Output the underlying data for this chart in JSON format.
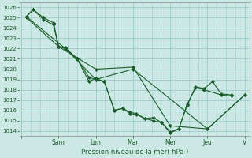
{
  "bg_color": "#cce8e4",
  "grid_color": "#99cccc",
  "line_color": "#1a5c2a",
  "xlabel": "Pression niveau de la mer( hPa )",
  "ylim": [
    1013.5,
    1026.5
  ],
  "yticks": [
    1014,
    1015,
    1016,
    1017,
    1018,
    1019,
    1020,
    1021,
    1022,
    1023,
    1024,
    1025,
    1026
  ],
  "xlim": [
    -0.1,
    13.5
  ],
  "day_labels": [
    "",
    "Sam",
    "Lun",
    "Mar",
    "Mer",
    "Jeu",
    "V"
  ],
  "day_positions": [
    0,
    2.2,
    4.4,
    6.6,
    8.8,
    11.0,
    13.2
  ],
  "series": [
    {
      "x": [
        0.3,
        0.7,
        1.3,
        1.9,
        2.2,
        2.6,
        3.3,
        4.0,
        4.4,
        4.9,
        5.5,
        6.0,
        6.4,
        6.8,
        7.3,
        7.8,
        8.3,
        8.8,
        9.3,
        9.8,
        10.3,
        10.8,
        11.3,
        11.8,
        12.4
      ],
      "y": [
        1025.1,
        1025.8,
        1025.0,
        1024.5,
        1022.2,
        1022.1,
        1021.0,
        1018.8,
        1019.1,
        1018.8,
        1016.0,
        1016.2,
        1015.8,
        1015.7,
        1015.2,
        1015.3,
        1014.8,
        1013.8,
        1014.2,
        1016.5,
        1018.3,
        1018.1,
        1018.8,
        1017.6,
        1017.5
      ]
    },
    {
      "x": [
        0.3,
        0.7,
        1.3,
        1.9,
        2.2,
        2.6,
        3.3,
        4.0,
        4.4,
        4.9,
        5.5,
        6.0,
        6.4,
        6.8,
        7.3,
        7.8,
        8.3,
        8.8,
        9.3,
        9.8,
        10.3,
        10.8,
        11.8,
        12.4
      ],
      "y": [
        1025.1,
        1025.8,
        1024.8,
        1024.3,
        1022.2,
        1022.0,
        1021.0,
        1019.2,
        1019.0,
        1018.8,
        1016.0,
        1016.2,
        1015.7,
        1015.6,
        1015.2,
        1015.0,
        1014.8,
        1013.9,
        1014.2,
        1016.6,
        1018.2,
        1018.0,
        1017.5,
        1017.4
      ]
    },
    {
      "x": [
        0.3,
        2.2,
        4.4,
        6.6,
        8.8,
        11.0,
        13.2
      ],
      "y": [
        1025.0,
        1022.2,
        1020.0,
        1020.2,
        1014.5,
        1014.2,
        1017.5
      ]
    },
    {
      "x": [
        0.3,
        2.6,
        4.4,
        6.6,
        11.0,
        13.2
      ],
      "y": [
        1025.1,
        1022.0,
        1019.0,
        1020.0,
        1014.2,
        1017.5
      ]
    }
  ]
}
